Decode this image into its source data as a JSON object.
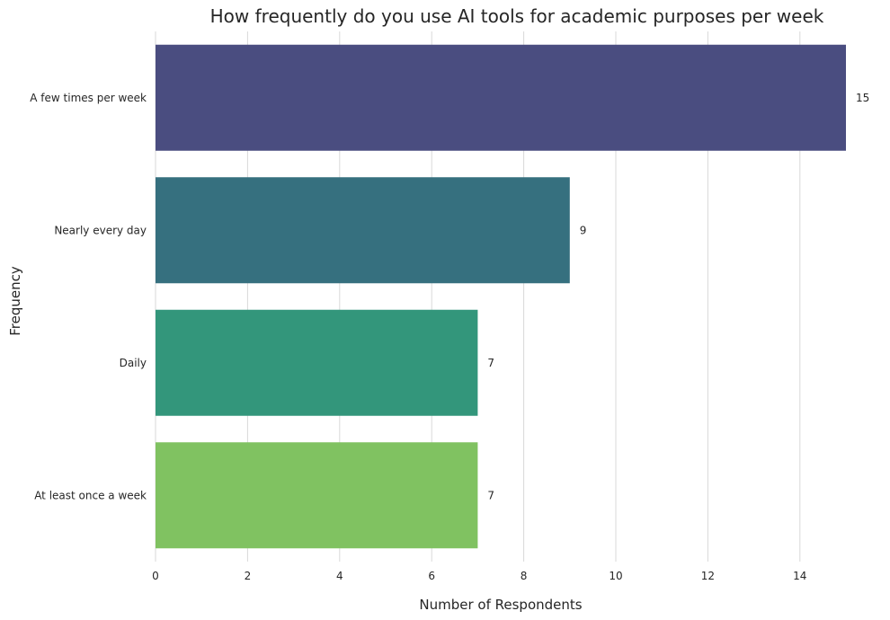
{
  "chart_data": {
    "type": "bar",
    "orientation": "horizontal",
    "title": "How frequently do you use AI tools for academic purposes per week",
    "xlabel": "Number of Respondents",
    "ylabel": "Frequency",
    "categories": [
      "A few times per week",
      "Nearly every day",
      "Daily",
      "At least once a week"
    ],
    "values": [
      15,
      9,
      7,
      7
    ],
    "colors": [
      "#4a4d80",
      "#36707f",
      "#33967b",
      "#80c261"
    ],
    "xlim": [
      0,
      15
    ],
    "xticks": [
      0,
      2,
      4,
      6,
      8,
      10,
      12,
      14
    ],
    "grid": "vertical",
    "data_labels": true
  }
}
